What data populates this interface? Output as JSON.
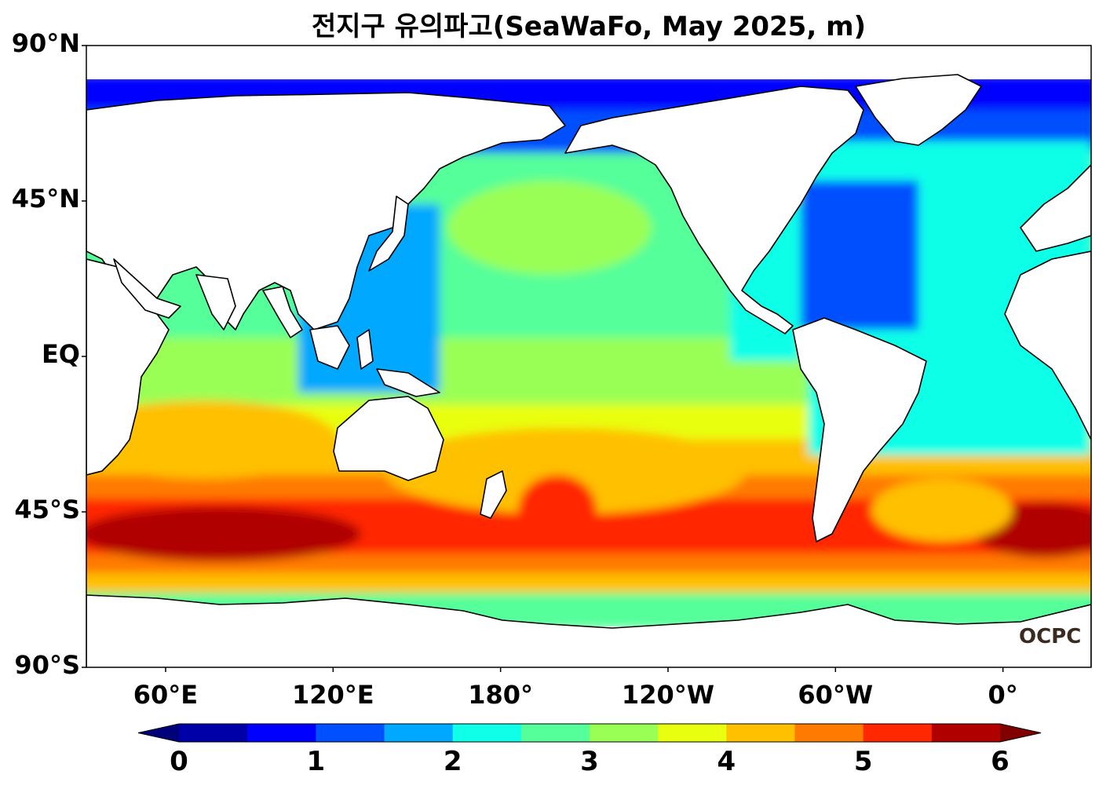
{
  "title": "전지구 유의파고(SeaWaFo, May 2025, m)",
  "y_axis": {
    "ticks": [
      {
        "label": "90°N",
        "lat": 90
      },
      {
        "label": "45°N",
        "lat": 45
      },
      {
        "label": "EQ",
        "lat": 0
      },
      {
        "label": "45°S",
        "lat": -45
      },
      {
        "label": "90°S",
        "lat": -90
      }
    ]
  },
  "x_axis": {
    "ticks": [
      {
        "label": "60°E",
        "lon": 60
      },
      {
        "label": "120°E",
        "lon": 120
      },
      {
        "label": "180°",
        "lon": 180
      },
      {
        "label": "120°W",
        "lon": 240
      },
      {
        "label": "60°W",
        "lon": 300
      },
      {
        "label": "0°",
        "lon": 360
      }
    ]
  },
  "colorbar": {
    "ticks": [
      "0",
      "1",
      "2",
      "3",
      "4",
      "5",
      "6"
    ],
    "tick_values": [
      0,
      1,
      2,
      3,
      4,
      5,
      6
    ],
    "levels": [
      0,
      0.5,
      1,
      1.5,
      2,
      2.5,
      3,
      3.5,
      4,
      4.5,
      5,
      5.5,
      6
    ],
    "colors": [
      "#0000a8",
      "#0000ff",
      "#0050ff",
      "#00a8ff",
      "#10ffe8",
      "#55ff9a",
      "#9aff55",
      "#e8ff10",
      "#ffc000",
      "#ff7a00",
      "#ff2800",
      "#b00000"
    ],
    "under_color": "#00007a",
    "over_color": "#800000",
    "extend": "both"
  },
  "logo": "OCPC"
}
